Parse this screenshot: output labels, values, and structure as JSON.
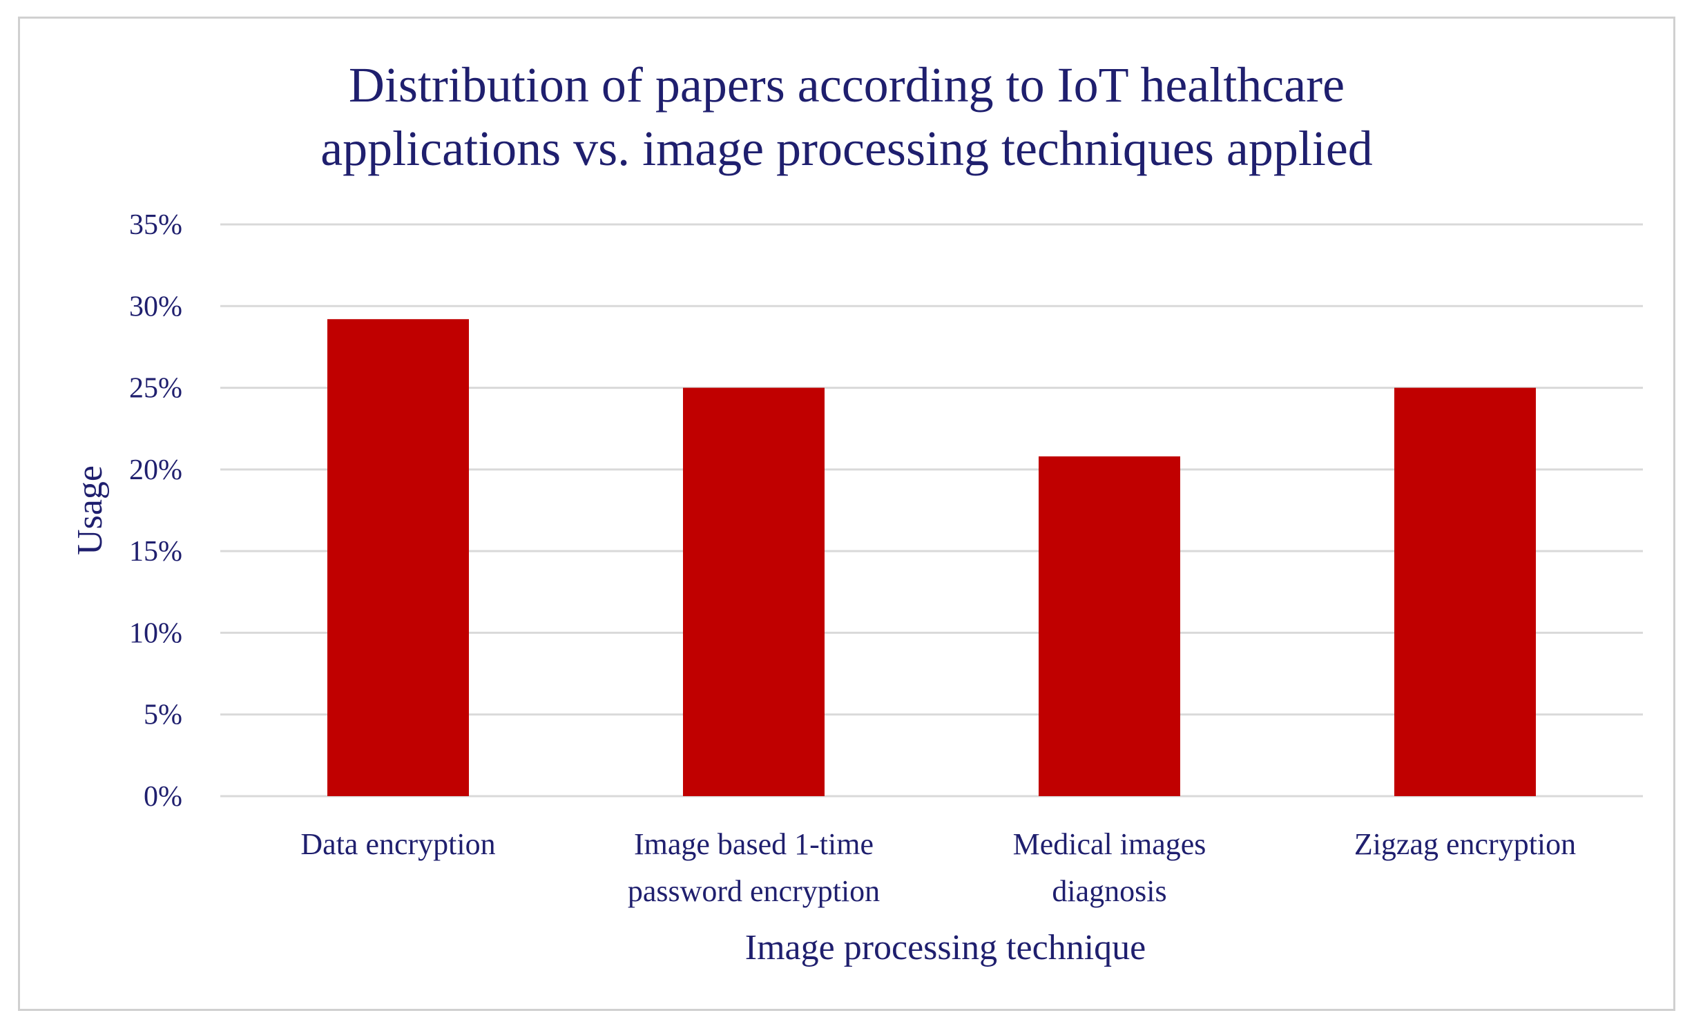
{
  "chart_data": {
    "type": "bar",
    "title_lines": [
      "Distribution of papers according to IoT healthcare",
      "applications vs. image processing techniques applied"
    ],
    "xlabel": "Image processing technique",
    "ylabel": "Usage",
    "categories": [
      [
        "Data encryption"
      ],
      [
        "Image based 1-time",
        "password encryption"
      ],
      [
        "Medical images",
        "diagnosis"
      ],
      [
        "Zigzag encryption"
      ]
    ],
    "values": [
      0.292,
      0.25,
      0.208,
      0.25
    ],
    "ylim": [
      0,
      0.35
    ],
    "yticks": [
      0,
      0.05,
      0.1,
      0.15,
      0.2,
      0.25,
      0.3,
      0.35
    ],
    "ytick_labels": [
      "0%",
      "5%",
      "10%",
      "15%",
      "20%",
      "25%",
      "30%",
      "35%"
    ],
    "bar_color": "#c00000",
    "grid": true,
    "grid_color": "#d9d9d9",
    "legend": "none"
  }
}
